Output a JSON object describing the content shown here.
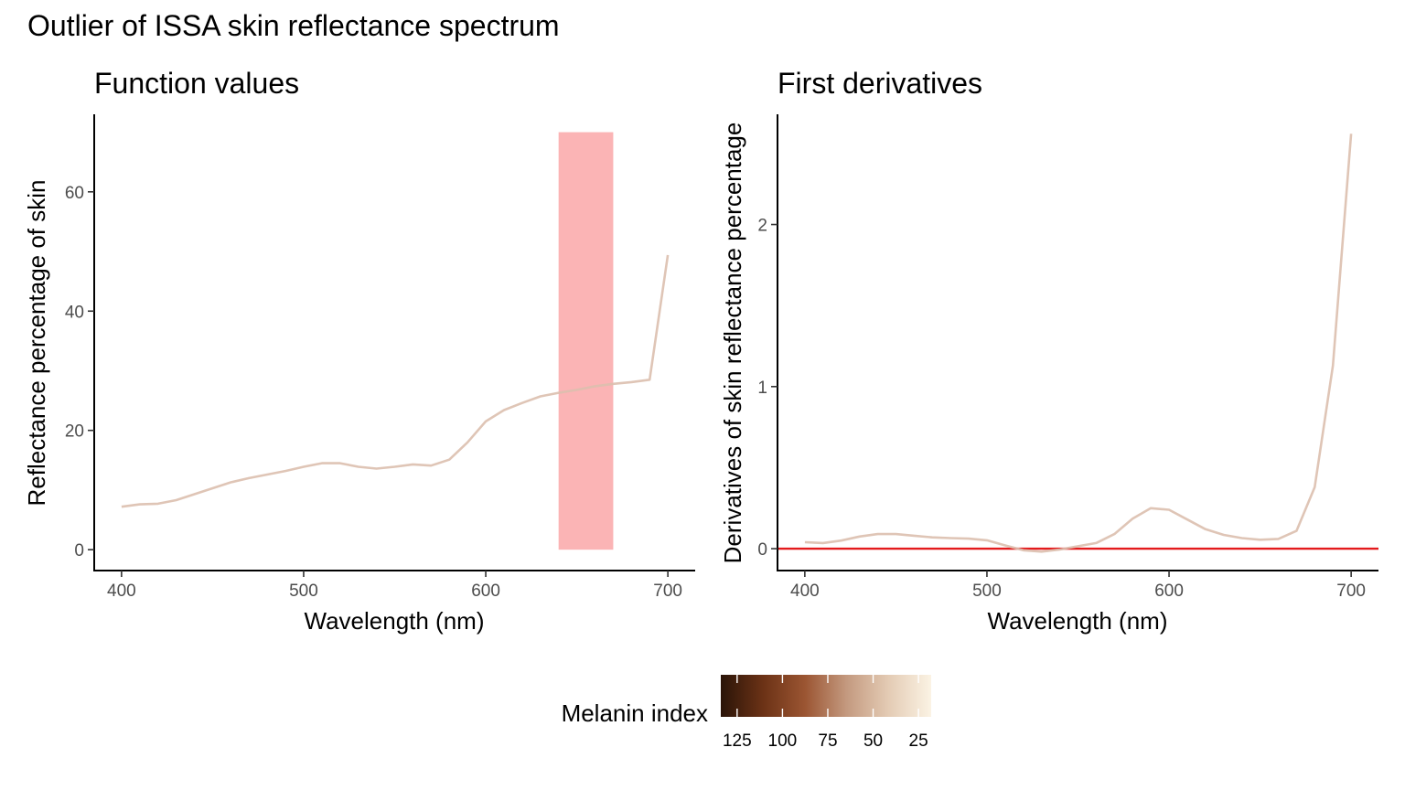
{
  "title": "Outlier of ISSA skin reflectance spectrum",
  "colors": {
    "curve": "#dbbfae",
    "highlight": "#fbb4b5",
    "zero_line": "#e31a1c",
    "axis": "#000000",
    "legend_gradient": [
      "#2a1408",
      "#6b3216",
      "#9b5532",
      "#c49a80",
      "#e4ccb5",
      "#fbf3e4"
    ]
  },
  "chart_data": [
    {
      "type": "line",
      "title": "Function values",
      "xlabel": "Wavelength (nm)",
      "ylabel": "Reflectance percentage of skin",
      "xlim": [
        385,
        715
      ],
      "ylim": [
        -3.5,
        73
      ],
      "xticks": [
        400,
        500,
        600,
        700
      ],
      "yticks": [
        0,
        20,
        40,
        60
      ],
      "highlight_band": {
        "x": [
          640,
          670
        ],
        "y": [
          0,
          70
        ]
      },
      "series": [
        {
          "x": [
            400,
            410,
            420,
            430,
            440,
            450,
            460,
            470,
            480,
            490,
            500,
            510,
            520,
            530,
            540,
            550,
            560,
            570,
            580,
            590,
            600,
            610,
            620,
            630,
            640,
            650,
            660,
            670,
            680,
            690,
            700
          ],
          "values": [
            7.2,
            7.6,
            7.7,
            8.3,
            9.3,
            10.3,
            11.3,
            12.0,
            12.6,
            13.2,
            13.9,
            14.5,
            14.5,
            13.9,
            13.6,
            13.9,
            14.3,
            14.1,
            15.1,
            18.0,
            21.5,
            23.4,
            24.6,
            25.7,
            26.3,
            26.8,
            27.4,
            27.8,
            28.1,
            28.5,
            49.4
          ]
        }
      ]
    },
    {
      "type": "line",
      "title": "First derivatives",
      "xlabel": "Wavelength (nm)",
      "ylabel": "Derivatives of skin reflectance percentage",
      "xlim": [
        385,
        715
      ],
      "ylim": [
        -0.135,
        2.68
      ],
      "xticks": [
        400,
        500,
        600,
        700
      ],
      "yticks": [
        0,
        1,
        2
      ],
      "reference_line": {
        "y": 0
      },
      "series": [
        {
          "x": [
            400,
            410,
            420,
            430,
            440,
            450,
            460,
            470,
            480,
            490,
            500,
            510,
            520,
            530,
            540,
            550,
            560,
            570,
            580,
            590,
            600,
            610,
            620,
            630,
            640,
            650,
            660,
            670,
            680,
            690,
            700
          ],
          "values": [
            0.04,
            0.035,
            0.05,
            0.075,
            0.09,
            0.09,
            0.08,
            0.07,
            0.065,
            0.062,
            0.052,
            0.02,
            -0.01,
            -0.018,
            -0.005,
            0.015,
            0.035,
            0.09,
            0.185,
            0.25,
            0.24,
            0.18,
            0.12,
            0.085,
            0.065,
            0.055,
            0.06,
            0.11,
            0.38,
            1.13,
            2.56
          ]
        }
      ]
    }
  ],
  "legend": {
    "title": "Melanin index",
    "position": "bottom",
    "scale_min": 18,
    "scale_max": 134,
    "labels": [
      {
        "text": "125",
        "value": 125
      },
      {
        "text": "100",
        "value": 100
      },
      {
        "text": "75",
        "value": 75
      },
      {
        "text": "50",
        "value": 50
      },
      {
        "text": "25",
        "value": 25
      }
    ]
  }
}
